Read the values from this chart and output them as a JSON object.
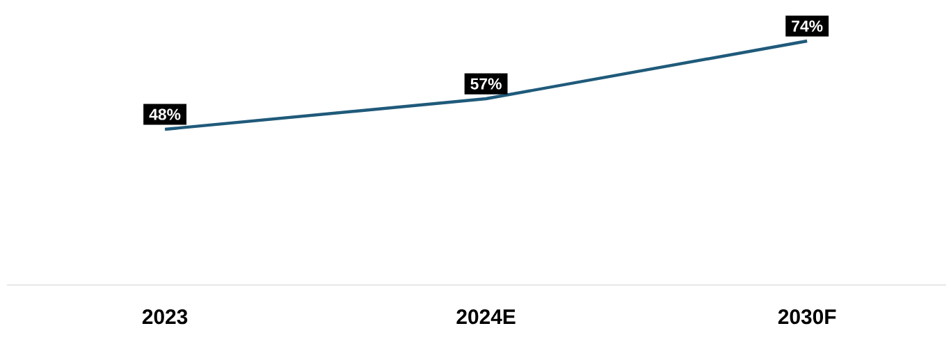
{
  "chart_data": {
    "type": "line",
    "categories": [
      "2023",
      "2024E",
      "2030F"
    ],
    "series": [
      {
        "color": "#1f5a7a",
        "values": [
          48,
          57,
          74
        ],
        "value_labels": [
          "48%",
          "57%",
          "74%"
        ]
      }
    ],
    "marker": "none",
    "line_style": "solid"
  }
}
